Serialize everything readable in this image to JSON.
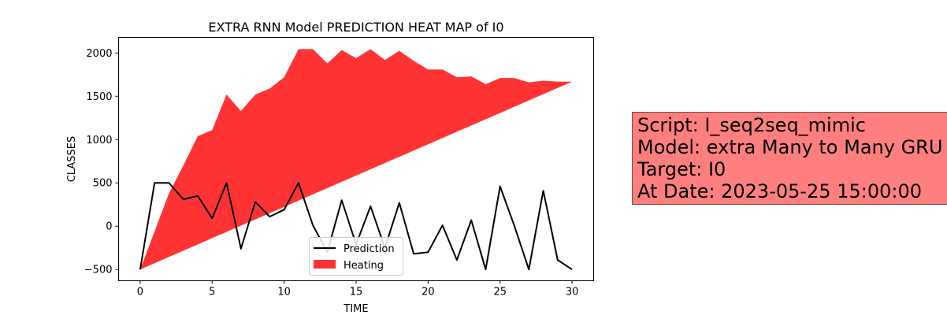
{
  "chart_data": {
    "type": "area",
    "title": "EXTRA RNN Model PREDICTION HEAT MAP of I0",
    "xlabel": "TIME",
    "ylabel": "CLASSES",
    "xlim": [
      -1.5,
      31.5
    ],
    "ylim": [
      -630,
      2180
    ],
    "xticks": [
      0,
      5,
      10,
      15,
      20,
      25,
      30
    ],
    "yticks": [
      -500,
      0,
      500,
      1000,
      1500,
      2000
    ],
    "x": [
      0,
      1,
      2,
      3,
      4,
      5,
      6,
      7,
      8,
      9,
      10,
      11,
      12,
      13,
      14,
      15,
      16,
      17,
      18,
      19,
      20,
      21,
      22,
      23,
      24,
      25,
      26,
      27,
      28,
      29,
      30
    ],
    "series": [
      {
        "name": "Prediction",
        "type": "line",
        "color": "#000000",
        "values": [
          -500,
          500,
          500,
          310,
          350,
          90,
          500,
          -260,
          280,
          110,
          190,
          500,
          10,
          -300,
          300,
          -210,
          230,
          -250,
          270,
          -320,
          -300,
          10,
          -390,
          70,
          -500,
          460,
          0,
          -500,
          410,
          -390,
          -500
        ]
      },
      {
        "name": "Heating",
        "type": "area",
        "color": "#ff3333",
        "lower": [
          -500,
          -428,
          -355,
          -283,
          -211,
          -138,
          -66,
          6,
          78,
          151,
          223,
          295,
          368,
          440,
          512,
          584,
          657,
          729,
          801,
          874,
          946,
          1018,
          1091,
          1163,
          1235,
          1307,
          1380,
          1452,
          1524,
          1597,
          1669
        ],
        "upper": [
          -500,
          -60,
          380,
          700,
          1040,
          1110,
          1520,
          1330,
          1520,
          1590,
          1720,
          2045,
          2045,
          1880,
          2035,
          1940,
          2045,
          1920,
          2025,
          1910,
          1810,
          1810,
          1720,
          1730,
          1640,
          1710,
          1710,
          1660,
          1680,
          1670,
          1669
        ]
      }
    ],
    "legend_position": "lower center",
    "grid": false
  },
  "info_box": {
    "lines": [
      "Script: I_seq2seq_mimic",
      "Model: extra Many to Many GRU",
      "Target: I0",
      "At Date: 2023-05-25 15:00:00"
    ],
    "background": "#ff7f7f"
  }
}
